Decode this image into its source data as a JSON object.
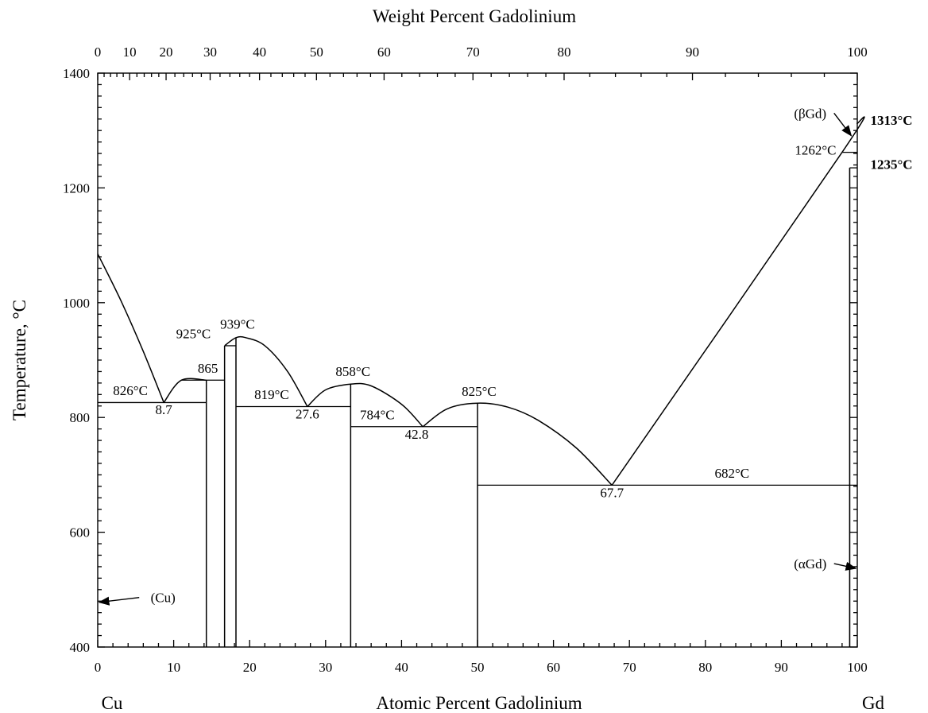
{
  "chart_data": {
    "type": "line",
    "title": "",
    "top_axis": {
      "label": "Weight Percent Gadolinium",
      "ticks": [
        {
          "label": "0",
          "at_pct": 0
        },
        {
          "label": "10",
          "at_pct": 4.2
        },
        {
          "label": "20",
          "at_pct": 9
        },
        {
          "label": "30",
          "at_pct": 14.8
        },
        {
          "label": "40",
          "at_pct": 21.3
        },
        {
          "label": "50",
          "at_pct": 28.8
        },
        {
          "label": "60",
          "at_pct": 37.7
        },
        {
          "label": "70",
          "at_pct": 49.4
        },
        {
          "label": "80",
          "at_pct": 61.4
        },
        {
          "label": "90",
          "at_pct": 78.3
        },
        {
          "label": "100",
          "at_pct": 100
        }
      ]
    },
    "x_axis": {
      "label": "Atomic Percent Gadolinium",
      "range": [
        0,
        100
      ],
      "ticks": [
        "0",
        "10",
        "20",
        "30",
        "40",
        "50",
        "60",
        "70",
        "80",
        "90",
        "100"
      ],
      "left_element": "Cu",
      "right_element": "Gd"
    },
    "y_axis": {
      "label": "Temperature, °C",
      "range": [
        400,
        1400
      ],
      "ticks": [
        "400",
        "600",
        "800",
        "1000",
        "1200",
        "1400"
      ]
    },
    "liquidus": [
      {
        "name": "Cu-side liquidus",
        "points": [
          [
            0,
            1085
          ],
          [
            3,
            1005
          ],
          [
            6,
            915
          ],
          [
            8.7,
            826
          ]
        ]
      },
      {
        "name": "dome 865",
        "points": [
          [
            8.7,
            826
          ],
          [
            11,
            865
          ],
          [
            14.3,
            865
          ]
        ]
      },
      {
        "name": "dome 925-939",
        "points": [
          [
            16.7,
            925
          ],
          [
            18.2,
            939
          ],
          [
            19.5,
            939
          ],
          [
            22,
            925
          ],
          [
            25,
            880
          ],
          [
            27.6,
            819
          ]
        ]
      },
      {
        "name": "dome 858",
        "points": [
          [
            27.6,
            819
          ],
          [
            30,
            848
          ],
          [
            33.3,
            858
          ],
          [
            36,
            855
          ],
          [
            40,
            823
          ],
          [
            42.8,
            784
          ]
        ]
      },
      {
        "name": "dome 825",
        "points": [
          [
            42.8,
            784
          ],
          [
            46,
            815
          ],
          [
            50,
            825
          ],
          [
            54,
            818
          ],
          [
            58,
            795
          ],
          [
            63,
            747
          ],
          [
            67.7,
            682
          ]
        ]
      },
      {
        "name": "Gd-side liquidus",
        "points": [
          [
            67.7,
            682
          ],
          [
            98,
            1262
          ],
          [
            100,
            1313
          ]
        ]
      }
    ],
    "isotherms": [
      {
        "label": "826°C",
        "value": 826,
        "x_range": [
          0,
          14.3
        ]
      },
      {
        "label": "865",
        "value": 865,
        "x_range": [
          11,
          16.7
        ]
      },
      {
        "label": "925°C",
        "value": 925,
        "x_range": [
          16.7,
          18.2
        ]
      },
      {
        "label": "819°C",
        "value": 819,
        "x_range": [
          18.2,
          33.3
        ]
      },
      {
        "label": "784°C",
        "value": 784,
        "x_range": [
          33.3,
          50
        ]
      },
      {
        "label": "682°C",
        "value": 682,
        "x_range": [
          50,
          100
        ]
      },
      {
        "label": "1235°C",
        "value": 1235,
        "x_range": [
          99,
          100
        ]
      },
      {
        "label": "1262°C",
        "value": 1262,
        "x_range": [
          98,
          100
        ]
      }
    ],
    "compounds": [
      {
        "x": 14.3,
        "top": 865
      },
      {
        "x": 16.7,
        "top": 925
      },
      {
        "x": 18.2,
        "top": 939
      },
      {
        "x": 33.3,
        "top": 858
      },
      {
        "x": 50,
        "top": 825
      }
    ],
    "annotations": [
      {
        "text": "826°C",
        "x": 4.3,
        "y": 839,
        "bold": false
      },
      {
        "text": "8.7",
        "x": 8.7,
        "y": 806,
        "bold": false
      },
      {
        "text": "865",
        "x": 14.5,
        "y": 878,
        "bold": false
      },
      {
        "text": "925°C",
        "x": 12.6,
        "y": 938,
        "bold": false
      },
      {
        "text": "939°C",
        "x": 18.4,
        "y": 955,
        "bold": false
      },
      {
        "text": "819°C",
        "x": 22.9,
        "y": 832,
        "bold": false
      },
      {
        "text": "27.6",
        "x": 27.6,
        "y": 798,
        "bold": false
      },
      {
        "text": "858°C",
        "x": 33.6,
        "y": 872,
        "bold": false
      },
      {
        "text": "784°C",
        "x": 36.8,
        "y": 797,
        "bold": false
      },
      {
        "text": "42.8",
        "x": 42.0,
        "y": 763,
        "bold": false
      },
      {
        "text": "825°C",
        "x": 50.2,
        "y": 838,
        "bold": false
      },
      {
        "text": "67.7",
        "x": 67.7,
        "y": 661,
        "bold": false
      },
      {
        "text": "682°C",
        "x": 83.5,
        "y": 695,
        "bold": false
      },
      {
        "text": "1262°C",
        "x": 94.5,
        "y": 1258,
        "bold": false
      },
      {
        "text": "1313°C",
        "x": 104.5,
        "y": 1310,
        "bold": true
      },
      {
        "text": "1235°C",
        "x": 104.5,
        "y": 1233,
        "bold": true
      }
    ],
    "phase_labels": [
      {
        "text": "(βGd)",
        "x": 93.8,
        "y": 1322,
        "arrow_to": [
          99.2,
          1291
        ]
      },
      {
        "text": "(αGd)",
        "x": 93.8,
        "y": 537,
        "arrow_to": [
          99.8,
          537
        ]
      },
      {
        "text": "(Cu)",
        "x": 8.6,
        "y": 478,
        "arrow_to": [
          0.2,
          478
        ]
      }
    ],
    "grid": false,
    "legend": "none"
  }
}
